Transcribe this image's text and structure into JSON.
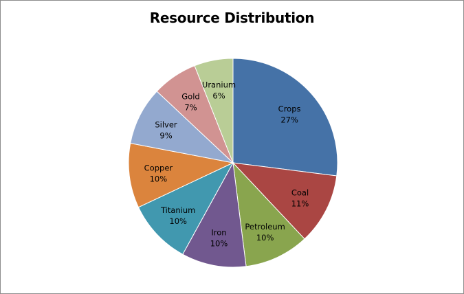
{
  "chart_data": {
    "type": "pie",
    "title": "Resource Distribution",
    "categories": [
      "Crops",
      "Coal",
      "Petroleum",
      "Iron",
      "Titanium",
      "Copper",
      "Silver",
      "Gold",
      "Uranium"
    ],
    "values": [
      27,
      11,
      10,
      10,
      10,
      10,
      9,
      7,
      6
    ],
    "value_labels": [
      "27%",
      "11%",
      "10%",
      "10%",
      "10%",
      "10%",
      "9%",
      "7%",
      "6%"
    ],
    "colors": [
      "#4572a7",
      "#aa4643",
      "#89a54e",
      "#71588f",
      "#4198af",
      "#db843d",
      "#93a9cf",
      "#d19392",
      "#b9cd96"
    ],
    "start_angle_deg": 0,
    "direction": "clockwise",
    "legend": "none"
  }
}
